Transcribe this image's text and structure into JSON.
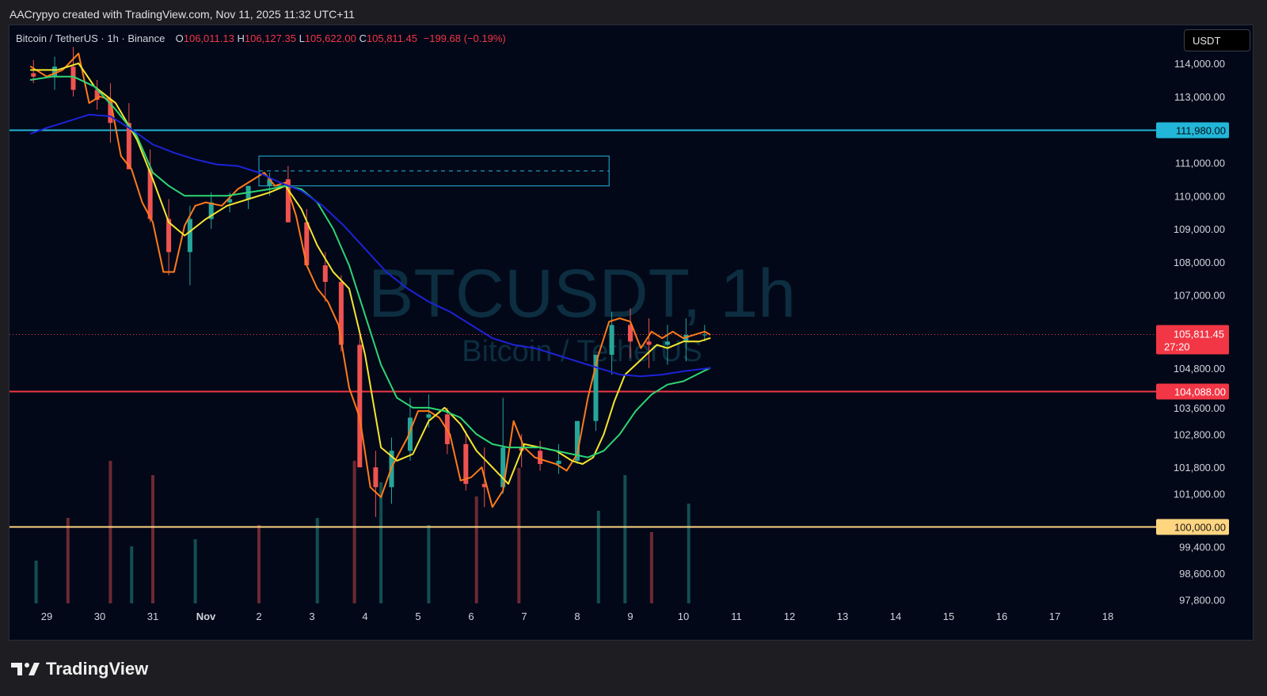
{
  "header": {
    "attribution": "AACrypyo created with TradingView.com, Nov 11, 2025 11:32 UTC+11"
  },
  "legend": {
    "symbol": "Bitcoin / TetherUS · 1h · Binance",
    "o_label": "O",
    "o_value": "106,011.13",
    "h_label": "H",
    "h_value": "106,127.35",
    "l_label": "L",
    "l_value": "105,622.00",
    "c_label": "C",
    "c_value": "105,811.45",
    "change": "−199.68 (−0.19%)"
  },
  "watermark": {
    "line1": "BTCUSDT, 1h",
    "line2": "Bitcoin / TetherUS"
  },
  "currency_button": "USDT",
  "footer": {
    "brand": "TradingView"
  },
  "colors": {
    "background": "#020818",
    "price_line": "#ff7a1a",
    "ema_fast": "#f5e52e",
    "ema_mid": "#2ed573",
    "ema_slow": "#1e22d8",
    "level_resistance": "#22b6d8",
    "level_support": "#f23645",
    "level_psych": "#ffd580",
    "up": "#26a69a",
    "down": "#ef5350"
  },
  "chart_data": {
    "type": "line",
    "title": "BTCUSDT, 1h",
    "xlabel": "",
    "ylabel": "",
    "ylim": [
      97400,
      115000
    ],
    "x_ticks": [
      "29",
      "30",
      "31",
      "Nov",
      "2",
      "3",
      "4",
      "5",
      "6",
      "7",
      "8",
      "9",
      "10",
      "11",
      "12",
      "13",
      "14",
      "15",
      "16",
      "17",
      "18"
    ],
    "y_ticks": [
      "114,000.00",
      "113,000.00",
      "111,000.00",
      "110,000.00",
      "109,000.00",
      "108,000.00",
      "107,000.00",
      "104,800.00",
      "103,600.00",
      "102,800.00",
      "101,800.00",
      "101,000.00",
      "99,400.00",
      "98,600.00",
      "97,800.00"
    ],
    "y_tick_values": [
      114000,
      113000,
      111000,
      110000,
      109000,
      108000,
      107000,
      104800,
      103600,
      102800,
      101800,
      101000,
      99400,
      98600,
      97800
    ],
    "series": [
      {
        "role": "price",
        "x": [
          28.7,
          29.0,
          29.3,
          29.6,
          29.8,
          30.0,
          30.2,
          30.4,
          30.6,
          30.8,
          31.0,
          31.2,
          31.4,
          31.6,
          31.8,
          32.0,
          32.3,
          32.6,
          32.9,
          33.1,
          33.3,
          33.5,
          33.7,
          33.9,
          34.1,
          34.3,
          34.5,
          34.7,
          34.9,
          35.1,
          35.3,
          35.5,
          35.8,
          36.0,
          36.2,
          36.4,
          36.6,
          36.8,
          37.0,
          37.2,
          37.4,
          37.6,
          37.8,
          38.0,
          38.2,
          38.4,
          38.6,
          38.8,
          39.0,
          39.2,
          39.4,
          39.6,
          39.8,
          40.0,
          40.2,
          40.4,
          40.6,
          40.8,
          41.0,
          41.2,
          41.4,
          41.5
        ],
        "y": [
          113900,
          113600,
          113800,
          114300,
          112800,
          113000,
          112900,
          111200,
          110800,
          109800,
          109200,
          107700,
          107700,
          109100,
          109700,
          109800,
          109700,
          110200,
          110500,
          110700,
          110300,
          110400,
          109400,
          107900,
          107200,
          106800,
          106100,
          104200,
          103300,
          101200,
          100900,
          101800,
          102700,
          103500,
          103500,
          103300,
          102800,
          101400,
          101500,
          101800,
          100600,
          101100,
          103200,
          102400,
          102100,
          102000,
          101900,
          101700,
          102200,
          103900,
          105200,
          106200,
          106300,
          106200,
          105400,
          105900,
          105700,
          105900,
          105700,
          105800,
          105900,
          105811.45
        ]
      },
      {
        "role": "ema_fast",
        "x": [
          28.7,
          29.2,
          29.6,
          29.9,
          30.3,
          30.7,
          31.0,
          31.3,
          31.6,
          32.0,
          32.4,
          32.8,
          33.2,
          33.5,
          33.8,
          34.1,
          34.4,
          34.7,
          35.0,
          35.3,
          35.6,
          35.9,
          36.2,
          36.5,
          36.8,
          37.1,
          37.4,
          37.7,
          38.0,
          38.3,
          38.6,
          38.9,
          39.1,
          39.3,
          39.5,
          39.7,
          39.9,
          40.1,
          40.3,
          40.5,
          40.7,
          41.0,
          41.3,
          41.5
        ],
        "y": [
          113800,
          113800,
          114000,
          113300,
          112800,
          111700,
          110500,
          109200,
          108800,
          109300,
          109700,
          109900,
          110100,
          110300,
          109600,
          108500,
          107700,
          107200,
          105200,
          102400,
          102000,
          102200,
          103200,
          103600,
          103100,
          102300,
          101800,
          101300,
          102500,
          102400,
          102300,
          102000,
          101900,
          102100,
          102800,
          103800,
          104600,
          104900,
          105200,
          105500,
          105400,
          105600,
          105600,
          105700
        ]
      },
      {
        "role": "ema_mid",
        "x": [
          28.7,
          29.1,
          29.5,
          29.9,
          30.3,
          30.7,
          31.0,
          31.3,
          31.6,
          32.0,
          32.4,
          32.8,
          33.2,
          33.5,
          33.8,
          34.1,
          34.4,
          34.7,
          35.0,
          35.3,
          35.6,
          35.9,
          36.2,
          36.5,
          36.8,
          37.1,
          37.4,
          37.7,
          38.0,
          38.3,
          38.6,
          38.9,
          39.2,
          39.5,
          39.8,
          40.1,
          40.4,
          40.7,
          41.0,
          41.5
        ],
        "y": [
          113500,
          113600,
          113600,
          113300,
          112600,
          111800,
          110700,
          110300,
          110000,
          110000,
          110000,
          110100,
          110200,
          110300,
          110200,
          109800,
          109000,
          107900,
          106400,
          104900,
          103900,
          103600,
          103600,
          103500,
          103300,
          102800,
          102500,
          102400,
          102400,
          102400,
          102300,
          102200,
          102100,
          102300,
          102800,
          103500,
          104000,
          104300,
          104400,
          104800
        ]
      },
      {
        "role": "ema_slow",
        "x": [
          28.7,
          29.0,
          29.4,
          29.8,
          30.2,
          30.6,
          31.0,
          31.4,
          31.8,
          32.2,
          32.6,
          33.0,
          33.4,
          33.8,
          34.2,
          34.6,
          35.0,
          35.4,
          35.8,
          36.2,
          36.6,
          37.0,
          37.4,
          37.8,
          38.2,
          38.6,
          39.0,
          39.4,
          39.8,
          40.2,
          40.6,
          41.0,
          41.5
        ],
        "y": [
          111880,
          112050,
          112250,
          112450,
          112400,
          112000,
          111550,
          111300,
          111100,
          110950,
          110900,
          110700,
          110400,
          110150,
          109700,
          109100,
          108400,
          107700,
          107200,
          106800,
          106500,
          106100,
          105700,
          105500,
          105400,
          105200,
          105000,
          104800,
          104600,
          104550,
          104600,
          104700,
          104800
        ]
      }
    ],
    "candles": {
      "x": [
        28.75,
        29.15,
        29.5,
        29.95,
        30.2,
        30.55,
        30.95,
        31.3,
        31.7,
        32.1,
        32.45,
        32.8,
        33.2,
        33.55,
        33.9,
        34.25,
        34.55,
        34.9,
        35.2,
        35.5,
        35.85,
        36.2,
        36.55,
        36.9,
        37.25,
        37.6,
        37.95,
        38.3,
        38.65,
        39.0,
        39.35,
        39.65,
        40.0,
        40.35,
        40.7,
        41.05,
        41.4
      ],
      "o": [
        113700,
        113600,
        113900,
        113200,
        112900,
        112200,
        110800,
        109300,
        108300,
        109300,
        109800,
        109900,
        110300,
        110500,
        109200,
        107900,
        107400,
        105500,
        101800,
        101200,
        102300,
        103300,
        103400,
        102500,
        101300,
        101200,
        102400,
        102300,
        101900,
        102000,
        103200,
        105200,
        106100,
        105600,
        105500,
        105600,
        105800
      ],
      "h": [
        114100,
        114200,
        114500,
        113500,
        113400,
        112800,
        111400,
        109900,
        109700,
        110100,
        110100,
        110200,
        110700,
        110900,
        109600,
        108300,
        107600,
        105900,
        102300,
        102700,
        103900,
        104000,
        103600,
        102900,
        102400,
        103900,
        102800,
        102600,
        102500,
        102700,
        104600,
        106500,
        106600,
        106300,
        106100,
        106300,
        106100
      ],
      "l": [
        113400,
        113200,
        113000,
        112600,
        111600,
        110900,
        109200,
        107600,
        107300,
        109000,
        109500,
        109600,
        110000,
        109800,
        108300,
        106800,
        105300,
        101900,
        100300,
        100700,
        102000,
        103000,
        102200,
        101100,
        100600,
        101000,
        101800,
        101700,
        101600,
        101900,
        102900,
        104600,
        105100,
        104800,
        104900,
        105000,
        105600
      ],
      "c": [
        113600,
        113900,
        113200,
        112900,
        112200,
        110800,
        109300,
        108300,
        109300,
        109800,
        109900,
        110300,
        110500,
        109200,
        107900,
        107400,
        105500,
        101800,
        101200,
        102300,
        103300,
        103400,
        102500,
        101300,
        101200,
        102400,
        102300,
        101900,
        102000,
        103200,
        105200,
        106100,
        105600,
        105500,
        105600,
        105800,
        105811
      ]
    },
    "horizontal_levels": [
      {
        "value": 111980,
        "label": "111,980.00",
        "role": "resistance"
      },
      {
        "value": 104088,
        "label": "104,088.00",
        "role": "support"
      },
      {
        "value": 100000,
        "label": "100,000.00",
        "role": "psych"
      }
    ],
    "zone": {
      "x_start": 33.0,
      "x_end": 39.6,
      "y_top": 111200,
      "y_bottom": 110300,
      "y_mid": 110750
    },
    "current_price": {
      "value": 105811.45,
      "label": "105,811.45",
      "countdown": "27:20"
    },
    "volume": [
      {
        "x": 28.8,
        "v": 0.3,
        "up": true
      },
      {
        "x": 29.4,
        "v": 0.6,
        "up": false
      },
      {
        "x": 30.2,
        "v": 1.0,
        "up": false
      },
      {
        "x": 30.6,
        "v": 0.4,
        "up": true
      },
      {
        "x": 31.0,
        "v": 0.9,
        "up": false
      },
      {
        "x": 31.8,
        "v": 0.45,
        "up": true
      },
      {
        "x": 33.0,
        "v": 0.55,
        "up": false
      },
      {
        "x": 34.1,
        "v": 0.6,
        "up": true
      },
      {
        "x": 34.8,
        "v": 1.0,
        "up": false
      },
      {
        "x": 35.3,
        "v": 0.85,
        "up": true
      },
      {
        "x": 36.2,
        "v": 0.55,
        "up": true
      },
      {
        "x": 37.1,
        "v": 0.75,
        "up": false
      },
      {
        "x": 37.9,
        "v": 0.95,
        "up": false
      },
      {
        "x": 39.4,
        "v": 0.65,
        "up": true
      },
      {
        "x": 39.9,
        "v": 0.9,
        "up": true
      },
      {
        "x": 40.4,
        "v": 0.5,
        "up": false
      },
      {
        "x": 41.1,
        "v": 0.7,
        "up": true
      }
    ],
    "grid": false,
    "legend_position": "top-left"
  }
}
